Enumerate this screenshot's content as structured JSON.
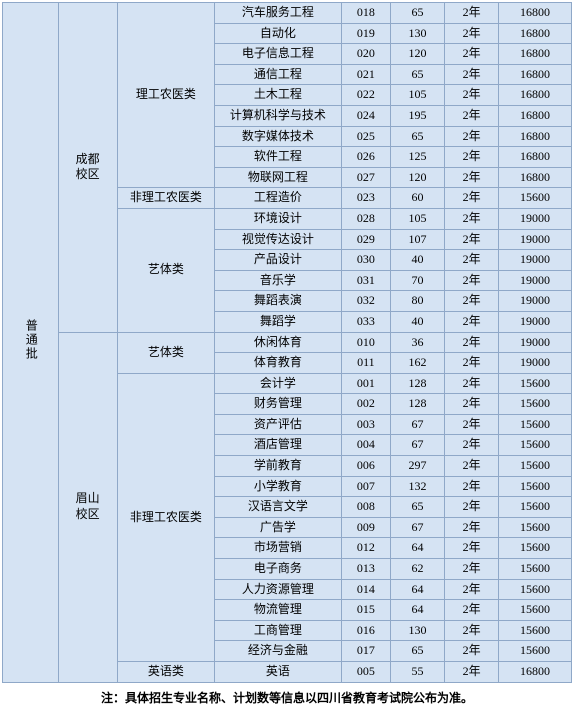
{
  "background_color": "#d5e3f3",
  "border_color": "#8fa8c8",
  "font_size_pt": 9,
  "note": "注：具体招生专业名称、计划数等信息以四川省教育考试院公布为准。",
  "batch_label": "普通批",
  "campuses": {
    "chengdu": "成都\n校区",
    "meishan": "眉山\n校区"
  },
  "categories": {
    "lgny": "理工农医类",
    "flgny": "非理工农医类",
    "yiti": "艺体类",
    "english": "英语类"
  },
  "rows": [
    {
      "major": "汽车服务工程",
      "code": "018",
      "quota": "65",
      "dur": "2年",
      "fee": "16800"
    },
    {
      "major": "自动化",
      "code": "019",
      "quota": "130",
      "dur": "2年",
      "fee": "16800"
    },
    {
      "major": "电子信息工程",
      "code": "020",
      "quota": "120",
      "dur": "2年",
      "fee": "16800"
    },
    {
      "major": "通信工程",
      "code": "021",
      "quota": "65",
      "dur": "2年",
      "fee": "16800"
    },
    {
      "major": "土木工程",
      "code": "022",
      "quota": "105",
      "dur": "2年",
      "fee": "16800"
    },
    {
      "major": "计算机科学与技术",
      "code": "024",
      "quota": "195",
      "dur": "2年",
      "fee": "16800"
    },
    {
      "major": "数字媒体技术",
      "code": "025",
      "quota": "65",
      "dur": "2年",
      "fee": "16800"
    },
    {
      "major": "软件工程",
      "code": "026",
      "quota": "125",
      "dur": "2年",
      "fee": "16800"
    },
    {
      "major": "物联网工程",
      "code": "027",
      "quota": "120",
      "dur": "2年",
      "fee": "16800"
    },
    {
      "major": "工程造价",
      "code": "023",
      "quota": "60",
      "dur": "2年",
      "fee": "15600"
    },
    {
      "major": "环境设计",
      "code": "028",
      "quota": "105",
      "dur": "2年",
      "fee": "19000"
    },
    {
      "major": "视觉传达设计",
      "code": "029",
      "quota": "107",
      "dur": "2年",
      "fee": "19000"
    },
    {
      "major": "产品设计",
      "code": "030",
      "quota": "40",
      "dur": "2年",
      "fee": "19000"
    },
    {
      "major": "音乐学",
      "code": "031",
      "quota": "70",
      "dur": "2年",
      "fee": "19000"
    },
    {
      "major": "舞蹈表演",
      "code": "032",
      "quota": "80",
      "dur": "2年",
      "fee": "19000"
    },
    {
      "major": "舞蹈学",
      "code": "033",
      "quota": "40",
      "dur": "2年",
      "fee": "19000"
    },
    {
      "major": "休闲体育",
      "code": "010",
      "quota": "36",
      "dur": "2年",
      "fee": "19000"
    },
    {
      "major": "体育教育",
      "code": "011",
      "quota": "162",
      "dur": "2年",
      "fee": "19000"
    },
    {
      "major": "会计学",
      "code": "001",
      "quota": "128",
      "dur": "2年",
      "fee": "15600"
    },
    {
      "major": "财务管理",
      "code": "002",
      "quota": "128",
      "dur": "2年",
      "fee": "15600"
    },
    {
      "major": "资产评估",
      "code": "003",
      "quota": "67",
      "dur": "2年",
      "fee": "15600"
    },
    {
      "major": "酒店管理",
      "code": "004",
      "quota": "67",
      "dur": "2年",
      "fee": "15600"
    },
    {
      "major": "学前教育",
      "code": "006",
      "quota": "297",
      "dur": "2年",
      "fee": "15600"
    },
    {
      "major": "小学教育",
      "code": "007",
      "quota": "132",
      "dur": "2年",
      "fee": "15600"
    },
    {
      "major": "汉语言文学",
      "code": "008",
      "quota": "65",
      "dur": "2年",
      "fee": "15600"
    },
    {
      "major": "广告学",
      "code": "009",
      "quota": "67",
      "dur": "2年",
      "fee": "15600"
    },
    {
      "major": "市场营销",
      "code": "012",
      "quota": "64",
      "dur": "2年",
      "fee": "15600"
    },
    {
      "major": "电子商务",
      "code": "013",
      "quota": "62",
      "dur": "2年",
      "fee": "15600"
    },
    {
      "major": "人力资源管理",
      "code": "014",
      "quota": "64",
      "dur": "2年",
      "fee": "15600"
    },
    {
      "major": "物流管理",
      "code": "015",
      "quota": "64",
      "dur": "2年",
      "fee": "15600"
    },
    {
      "major": "工商管理",
      "code": "016",
      "quota": "130",
      "dur": "2年",
      "fee": "15600"
    },
    {
      "major": "经济与金融",
      "code": "017",
      "quota": "65",
      "dur": "2年",
      "fee": "15600"
    },
    {
      "major": "英语",
      "code": "005",
      "quota": "55",
      "dur": "2年",
      "fee": "16800"
    }
  ]
}
